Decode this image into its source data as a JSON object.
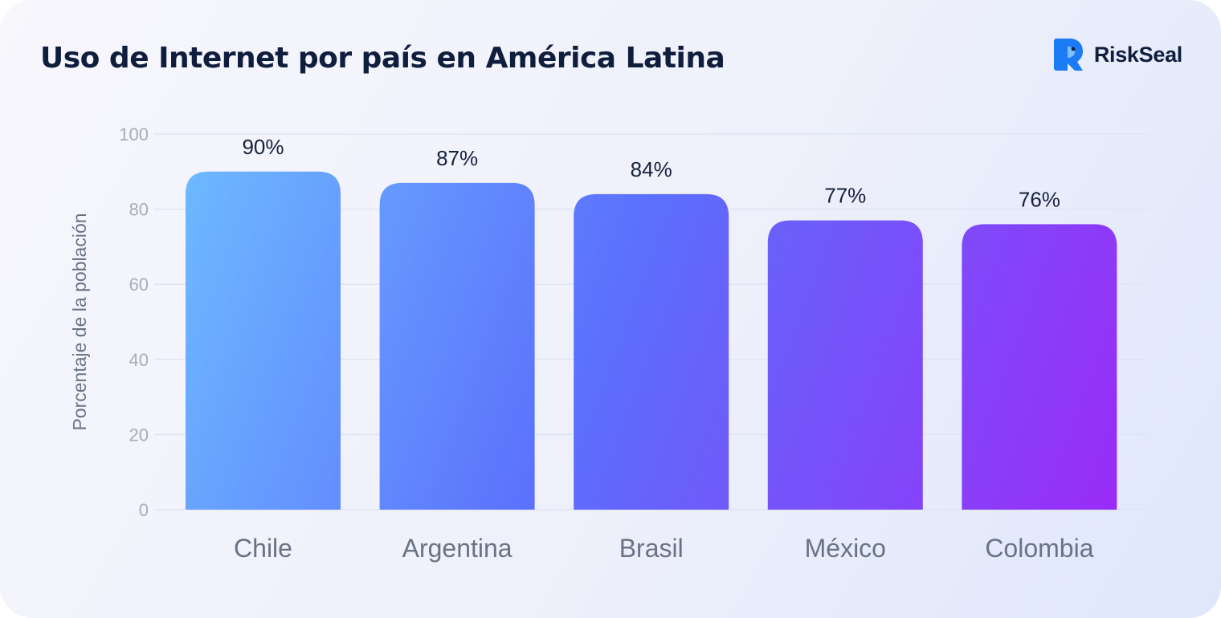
{
  "header": {
    "title": "Uso de Internet por país en América Latina",
    "brand_name": "RiskSeal",
    "brand_icon": "riskseal-logo-icon",
    "brand_color": "#1b7cf5"
  },
  "chart_data": {
    "type": "bar",
    "title": "Uso de Internet por país en América Latina",
    "xlabel": "",
    "ylabel": "Porcentaje de la población",
    "categories": [
      "Chile",
      "Argentina",
      "Brasil",
      "México",
      "Colombia"
    ],
    "values": [
      90,
      87,
      84,
      77,
      76
    ],
    "value_labels": [
      "90%",
      "87%",
      "84%",
      "77%",
      "76%"
    ],
    "ylim": [
      0,
      100
    ],
    "yticks": [
      0,
      20,
      40,
      60,
      80,
      100
    ],
    "ytick_labels": [
      "0",
      "20",
      "40",
      "60",
      "80",
      "100"
    ],
    "grid": true,
    "legend": "none",
    "colors": {
      "gradient_start": "#6db8ff",
      "gradient_end": "#9a2cf7",
      "grid": "#dde5f4"
    }
  }
}
